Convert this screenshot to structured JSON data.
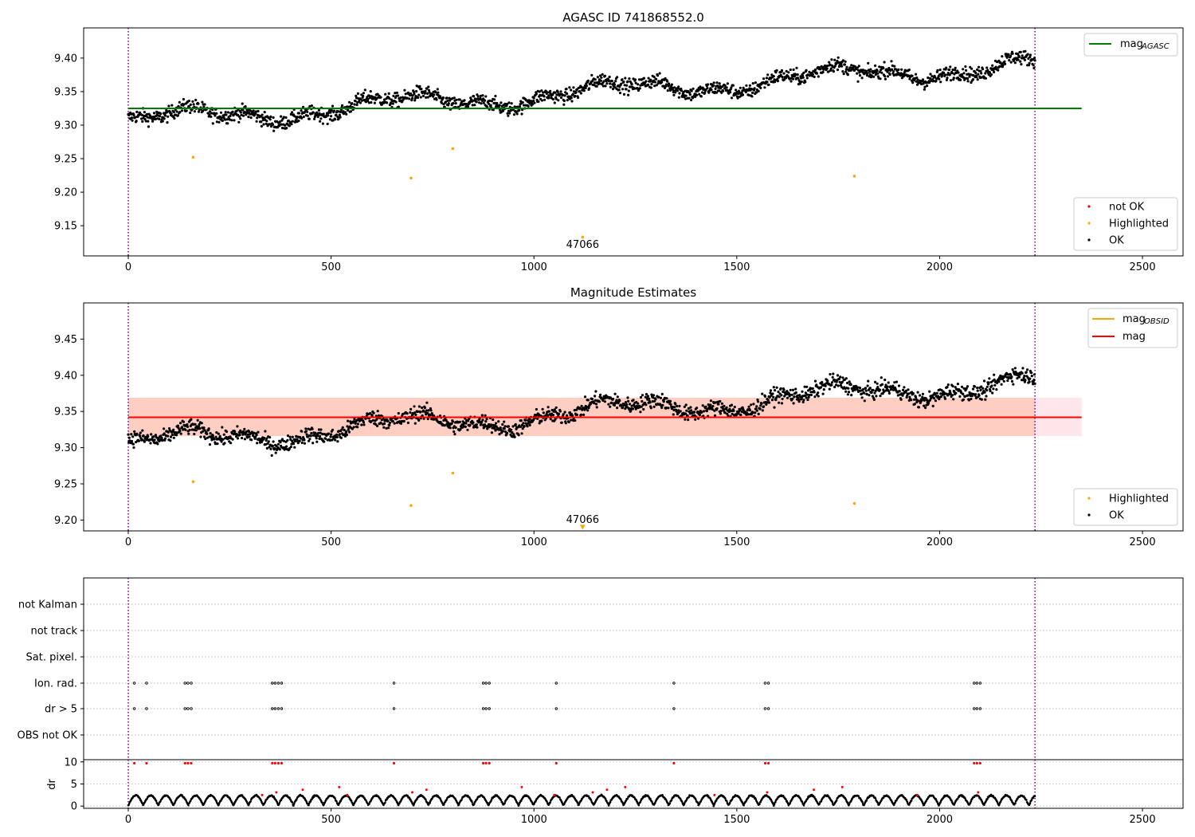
{
  "colors": {
    "ok": "#000000",
    "highlighted": "#ffa500",
    "not_ok": "#ff0000",
    "agasc_line": "#008000",
    "obsid_line": "#ffa500",
    "mag_line": "#ff0000",
    "band_outer": "#ffc0cb",
    "band_inner": "#ffa07a",
    "obs_boundary": "#800080",
    "grid": "#b0b0b0"
  },
  "chart_data": [
    {
      "id": "top",
      "type": "scatter",
      "title": "AGASC ID 741868552.0",
      "xlim": [
        -110,
        2600
      ],
      "ylim": [
        9.105,
        9.445
      ],
      "xticks": [
        0,
        500,
        1000,
        1500,
        2000,
        2500
      ],
      "yticks": [
        9.15,
        9.2,
        9.25,
        9.3,
        9.35,
        9.4
      ],
      "x_range": [
        0,
        2235
      ],
      "trend": {
        "start": 9.305,
        "end": 9.392
      },
      "highlighted": [
        [
          160,
          9.252
        ],
        [
          697,
          9.221
        ],
        [
          800,
          9.265
        ],
        [
          1790,
          9.224
        ],
        [
          1120,
          9.133
        ]
      ],
      "mag_agasc": 9.325,
      "mag_agasc_x": [
        0,
        2350
      ],
      "obs_boundaries": [
        0,
        2235
      ],
      "annotation": {
        "text": "47066",
        "x": 1120,
        "y": 9.118
      },
      "legend_lines": [
        {
          "label": "mag",
          "sub": "AGASC",
          "color": "#008000"
        }
      ],
      "legend_points": [
        {
          "label": "not OK",
          "color": "#ff0000"
        },
        {
          "label": "Highlighted",
          "color": "#ffa500"
        },
        {
          "label": "OK",
          "color": "#000000"
        }
      ]
    },
    {
      "id": "middle",
      "type": "scatter",
      "title": "Magnitude Estimates",
      "xlim": [
        -110,
        2600
      ],
      "ylim": [
        9.185,
        9.5
      ],
      "xticks": [
        0,
        500,
        1000,
        1500,
        2000,
        2500
      ],
      "yticks": [
        9.2,
        9.25,
        9.3,
        9.35,
        9.4,
        9.45
      ],
      "x_range": [
        0,
        2235
      ],
      "trend": {
        "start": 9.305,
        "end": 9.392
      },
      "highlighted": [
        [
          160,
          9.253
        ],
        [
          697,
          9.22
        ],
        [
          800,
          9.265
        ],
        [
          1790,
          9.223
        ]
      ],
      "marker_at": [
        1120,
        9.189
      ],
      "mag": 9.342,
      "band": {
        "low": 9.316,
        "high": 9.369
      },
      "band_x": [
        0,
        2350
      ],
      "obs_boundaries": [
        0,
        2235
      ],
      "annotation": {
        "text": "47066",
        "x": 1120,
        "y": 9.2
      },
      "legend_lines": [
        {
          "label": "mag",
          "sub": "OBSID",
          "color": "#ffa500"
        },
        {
          "label": "mag",
          "sub": "",
          "color": "#ff0000"
        }
      ],
      "legend_points": [
        {
          "label": "Highlighted",
          "color": "#ffa500"
        },
        {
          "label": "OK",
          "color": "#000000"
        }
      ]
    },
    {
      "id": "flags",
      "type": "scatter",
      "xlim": [
        -110,
        2600
      ],
      "categories": [
        "not Kalman",
        "not track",
        "Sat. pixel.",
        "Ion. rad.",
        "dr > 5",
        "OBS not OK"
      ],
      "flag_clusters": [
        15,
        45,
        140,
        147,
        155,
        355,
        362,
        370,
        378,
        655,
        875,
        882,
        890,
        1055,
        1345,
        1570,
        1578,
        2085,
        2092,
        2100
      ],
      "obs_boundaries": [
        0,
        2235
      ]
    },
    {
      "id": "dr",
      "type": "scatter",
      "ylabel": "dr",
      "xlim": [
        -110,
        2600
      ],
      "ylim": [
        -0.5,
        10.5
      ],
      "xticks": [
        0,
        500,
        1000,
        1500,
        2000,
        2500
      ],
      "yticks": [
        0,
        5,
        10
      ],
      "x_range": [
        0,
        2235
      ],
      "obs_boundaries": [
        0,
        2235
      ]
    }
  ]
}
